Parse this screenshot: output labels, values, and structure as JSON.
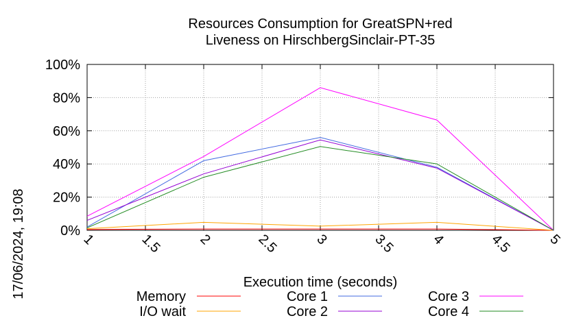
{
  "chart_data": {
    "type": "line",
    "title_line1": "Resources Consumption for GreatSPN+red",
    "title_line2": "Liveness on HirschbergSinclair-PT-35",
    "xlabel": "Execution time (seconds)",
    "ylabel": "",
    "side_label": "17/06/2024, 19:08",
    "xlim": [
      1,
      5
    ],
    "ylim": [
      0,
      100
    ],
    "x_ticks": [
      "1",
      "1.5",
      "2",
      "2.5",
      "3",
      "3.5",
      "4",
      "4.5",
      "5"
    ],
    "x_tick_values": [
      1,
      1.5,
      2,
      2.5,
      3,
      3.5,
      4,
      4.5,
      5
    ],
    "y_ticks": [
      "0%",
      "20%",
      "40%",
      "60%",
      "80%",
      "100%"
    ],
    "y_tick_values": [
      0,
      20,
      40,
      60,
      80,
      100
    ],
    "grid": true,
    "legend_position": "bottom",
    "series": [
      {
        "name": "Memory",
        "color": "#ff0000",
        "x": [
          1,
          2,
          3,
          4,
          5
        ],
        "y": [
          0.5,
          0.8,
          0.8,
          0.8,
          0
        ]
      },
      {
        "name": "I/O wait",
        "color": "#ffa500",
        "x": [
          1,
          2,
          3,
          4,
          5
        ],
        "y": [
          1,
          4.8,
          2.5,
          4.8,
          0
        ]
      },
      {
        "name": "Core 1",
        "color": "#4169e1",
        "x": [
          1,
          2,
          3,
          4,
          5
        ],
        "y": [
          2,
          42,
          56,
          38,
          0
        ]
      },
      {
        "name": "Core 2",
        "color": "#9400d3",
        "x": [
          1,
          2,
          3,
          4,
          5
        ],
        "y": [
          6,
          34,
          54.5,
          37.5,
          0
        ]
      },
      {
        "name": "Core 3",
        "color": "#ff00ff",
        "x": [
          1,
          2,
          3,
          4,
          5
        ],
        "y": [
          8.5,
          44.5,
          86,
          66.5,
          0
        ]
      },
      {
        "name": "Core 4",
        "color": "#228b22",
        "x": [
          1,
          2,
          3,
          4,
          5
        ],
        "y": [
          1.5,
          32,
          50.5,
          40,
          0
        ]
      }
    ]
  }
}
